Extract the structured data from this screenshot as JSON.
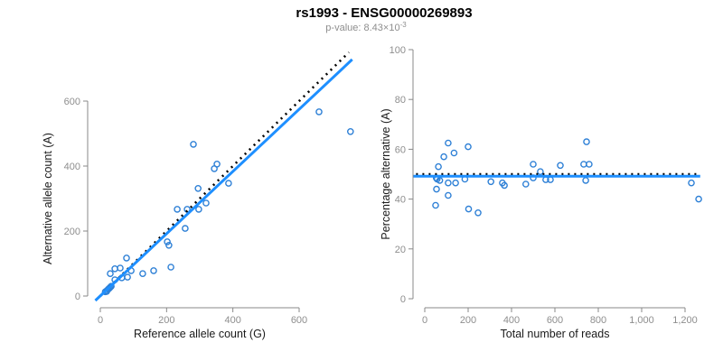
{
  "header": {
    "title": "rs1993 - ENSG00000269893",
    "subtitle_main": "p-value: 8.43×10",
    "subtitle_sup": "-3"
  },
  "colors": {
    "point": "#2E80D6",
    "fit_line": "#1E8FFF",
    "reference_line": "#000000",
    "axis": "#888888",
    "tick_label": "#8e8e8e",
    "title": "#000000",
    "subtitle": "#8e8e8e"
  },
  "chart_data": [
    {
      "type": "scatter",
      "panel": "allele-counts",
      "xlabel": "Reference allele count (G)",
      "ylabel": "Alternative allele count (A)",
      "xlim": [
        -35,
        790
      ],
      "ylim": [
        -36,
        760
      ],
      "xticks": [
        0,
        200,
        400,
        600
      ],
      "xtick_labels": [
        "0",
        "200",
        "400",
        "600"
      ],
      "yticks": [
        0,
        200,
        400,
        600
      ],
      "ytick_labels": [
        "0",
        "200",
        "400",
        "600"
      ],
      "grid": false,
      "points": [
        [
          15,
          13
        ],
        [
          20,
          17
        ],
        [
          24,
          21
        ],
        [
          27,
          24
        ],
        [
          30,
          27
        ],
        [
          33,
          30
        ],
        [
          19,
          14
        ],
        [
          30,
          69
        ],
        [
          44,
          84
        ],
        [
          60,
          86
        ],
        [
          44,
          50
        ],
        [
          65,
          56
        ],
        [
          82,
          58
        ],
        [
          79,
          117
        ],
        [
          93,
          78
        ],
        [
          128,
          69
        ],
        [
          161,
          78
        ],
        [
          213,
          89
        ],
        [
          202,
          167
        ],
        [
          207,
          156
        ],
        [
          256,
          208
        ],
        [
          232,
          267
        ],
        [
          262,
          267
        ],
        [
          297,
          267
        ],
        [
          319,
          286
        ],
        [
          295,
          331
        ],
        [
          387,
          347
        ],
        [
          281,
          467
        ],
        [
          344,
          392
        ],
        [
          352,
          406
        ],
        [
          660,
          567
        ],
        [
          755,
          506
        ]
      ],
      "lines": [
        {
          "name": "identity-reference-line",
          "style": "dotted",
          "color": "#000000",
          "x1": 0,
          "y1": 0,
          "x2": 750,
          "y2": 750
        },
        {
          "name": "regression-fit-line",
          "style": "solid",
          "color": "#1E8FFF",
          "x1": -15,
          "y1": -14,
          "x2": 760,
          "y2": 728
        }
      ]
    },
    {
      "type": "scatter",
      "panel": "percentage-vs-reads",
      "xlabel": "Total number of reads",
      "ylabel": "Percentage alternative (A)",
      "xlim": [
        -55,
        1270
      ],
      "ylim": [
        0,
        100
      ],
      "xticks": [
        0,
        200,
        400,
        600,
        800,
        1000,
        1200
      ],
      "xtick_labels": [
        "0",
        "200",
        "400",
        "600",
        "800",
        "1,000",
        "1,200"
      ],
      "yticks": [
        0,
        20,
        40,
        60,
        80,
        100
      ],
      "ytick_labels": [
        "0",
        "20",
        "40",
        "60",
        "80",
        "100"
      ],
      "grid": false,
      "points": [
        [
          50,
          37.5
        ],
        [
          54,
          44
        ],
        [
          53,
          48.5
        ],
        [
          57,
          48
        ],
        [
          63,
          53
        ],
        [
          69,
          47.5
        ],
        [
          88,
          57
        ],
        [
          108,
          62.5
        ],
        [
          108,
          46.5
        ],
        [
          108,
          41.5
        ],
        [
          135,
          58.5
        ],
        [
          142,
          46.5
        ],
        [
          185,
          48
        ],
        [
          200,
          61
        ],
        [
          202,
          36
        ],
        [
          246,
          34.5
        ],
        [
          305,
          47
        ],
        [
          358,
          46.5
        ],
        [
          367,
          45.5
        ],
        [
          466,
          46
        ],
        [
          500,
          54
        ],
        [
          500,
          48.5
        ],
        [
          533,
          51
        ],
        [
          558,
          47.8
        ],
        [
          579,
          47.8
        ],
        [
          625,
          53.5
        ],
        [
          733,
          54
        ],
        [
          758,
          54
        ],
        [
          746,
          63
        ],
        [
          742,
          47.5
        ],
        [
          1229,
          46.5
        ],
        [
          1263,
          40
        ]
      ],
      "lines": [
        {
          "name": "fifty-percent-reference-line",
          "style": "dotted",
          "color": "#000000",
          "x1": -40,
          "y1": 50,
          "x2": 1255,
          "y2": 50
        },
        {
          "name": "regression-fit-line",
          "style": "solid",
          "color": "#1E8FFF",
          "x1": -55,
          "y1": 49.2,
          "x2": 1270,
          "y2": 49.2
        }
      ]
    }
  ]
}
